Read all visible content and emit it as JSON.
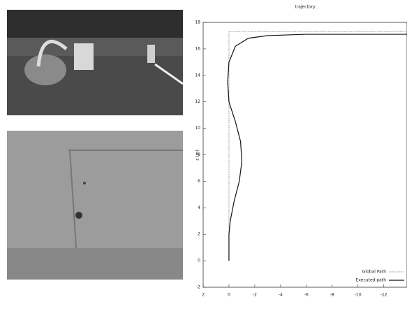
{
  "chart_data": {
    "type": "line",
    "title": "trajectory",
    "ylabel": "z (m)",
    "xlim": [
      2,
      -13.8
    ],
    "xticks": [
      2,
      0,
      -2,
      -4,
      -6,
      -8,
      -10,
      -12
    ],
    "ylim": [
      -2,
      18
    ],
    "yticks": [
      -2,
      0,
      2,
      4,
      6,
      8,
      10,
      12,
      14,
      16,
      18
    ],
    "legend": "lower right",
    "series": [
      {
        "name": "Global Path",
        "color": "#9a9a9a",
        "x": [
          0,
          0,
          -13.8
        ],
        "values": [
          0,
          17.3,
          17.3
        ]
      },
      {
        "name": "Executed path",
        "color": "#111111",
        "x": [
          0,
          0,
          -0.1,
          -0.4,
          -0.8,
          -1.0,
          -0.9,
          -0.5,
          0,
          0.1,
          0,
          -0.5,
          -1.5,
          -3,
          -6,
          -10,
          -13.8
        ],
        "values": [
          0,
          2,
          3,
          4.5,
          6,
          7.5,
          9,
          10.5,
          12,
          13.5,
          15,
          16.2,
          16.8,
          17.0,
          17.1,
          17.1,
          17.1
        ]
      }
    ]
  }
}
